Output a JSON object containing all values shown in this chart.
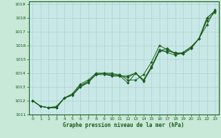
{
  "xlabel": "Graphe pression niveau de la mer (hPa)",
  "background_color": "#c8e8d8",
  "plot_bg_color": "#c8e8e8",
  "grid_color": "#b0d0c8",
  "line_color": "#1a5c1a",
  "marker_color": "#1a5c1a",
  "xlim": [
    -0.5,
    23.5
  ],
  "ylim": [
    1011,
    1019.2
  ],
  "yticks": [
    1011,
    1012,
    1013,
    1014,
    1015,
    1016,
    1017,
    1018,
    1019
  ],
  "xticks": [
    0,
    1,
    2,
    3,
    4,
    5,
    6,
    7,
    8,
    9,
    10,
    11,
    12,
    13,
    14,
    15,
    16,
    17,
    18,
    19,
    20,
    21,
    22,
    23
  ],
  "series": [
    [
      1012.0,
      1011.6,
      1011.5,
      1011.5,
      1012.2,
      1012.4,
      1013.0,
      1013.3,
      1013.9,
      1013.9,
      1013.8,
      1013.8,
      1013.8,
      1014.0,
      1013.5,
      1014.4,
      1015.6,
      1015.8,
      1015.4,
      1015.4,
      1015.8,
      1016.5,
      1017.5,
      1018.6
    ],
    [
      1012.0,
      1011.6,
      1011.5,
      1011.5,
      1012.2,
      1012.4,
      1013.0,
      1013.4,
      1013.9,
      1014.0,
      1013.8,
      1013.8,
      1013.3,
      1014.0,
      1013.4,
      1014.4,
      1015.6,
      1015.6,
      1015.5,
      1015.4,
      1015.8,
      1016.5,
      1017.8,
      1018.4
    ],
    [
      1012.0,
      1011.6,
      1011.5,
      1011.5,
      1012.2,
      1012.5,
      1013.1,
      1013.4,
      1013.9,
      1014.0,
      1014.0,
      1013.8,
      1013.7,
      1014.0,
      1013.5,
      1014.5,
      1015.7,
      1015.5,
      1015.3,
      1015.5,
      1015.9,
      1016.5,
      1018.0,
      1018.5
    ],
    [
      1012.0,
      1011.6,
      1011.5,
      1011.6,
      1012.2,
      1012.5,
      1013.2,
      1013.5,
      1014.0,
      1014.0,
      1013.9,
      1013.9,
      1013.5,
      1013.5,
      1013.9,
      1014.8,
      1016.0,
      1015.7,
      1015.4,
      1015.5,
      1015.9,
      1016.5,
      1018.0,
      1018.5
    ]
  ]
}
